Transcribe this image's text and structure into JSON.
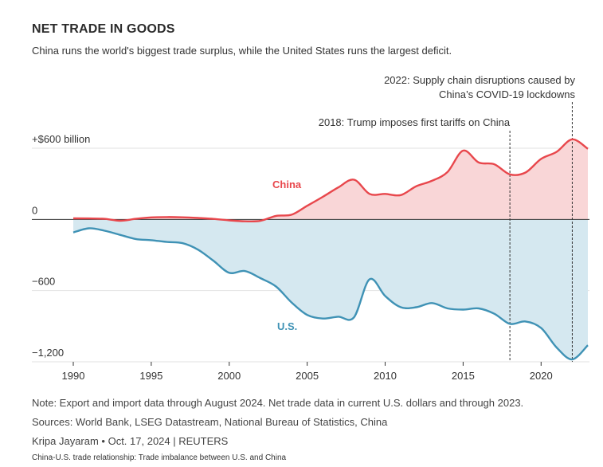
{
  "header": {
    "title": "NET TRADE IN GOODS",
    "subtitle": "China runs the world's biggest trade surplus, while the United States runs the largest deficit."
  },
  "footer": {
    "note": "Note: Export and import data through August 2024. Net trade data in current U.S. dollars and through 2023.",
    "sources": "Sources: World Bank, LSEG Datastream, National Bureau of Statistics, China",
    "byline": "Kripa Jayaram • Oct. 17, 2024 | REUTERS",
    "caption": "China-U.S. trade relationship: Trade imbalance between U.S. and China"
  },
  "colors": {
    "china_line": "#e8474c",
    "china_fill": "#f9d6d7",
    "us_line": "#3f92b5",
    "us_fill": "#d5e8f0",
    "grid": "#e2e2e2",
    "zero": "#333333"
  },
  "chart_data": {
    "type": "area",
    "title": "NET TRADE IN GOODS",
    "xlim": [
      1990,
      2023
    ],
    "ylim": [
      -1200,
      600
    ],
    "y_ticks": [
      {
        "value": 600,
        "label": "+$600 billion"
      },
      {
        "value": 0,
        "label": "0"
      },
      {
        "value": -600,
        "label": "−600"
      },
      {
        "value": -1200,
        "label": "−1,200"
      }
    ],
    "x_ticks": [
      1990,
      1995,
      2000,
      2005,
      2010,
      2015,
      2020
    ],
    "grid": true,
    "series": [
      {
        "name": "China",
        "x": [
          1990,
          1991,
          1992,
          1993,
          1994,
          1995,
          1996,
          1997,
          1998,
          1999,
          2000,
          2001,
          2002,
          2003,
          2004,
          2005,
          2006,
          2007,
          2008,
          2009,
          2010,
          2011,
          2012,
          2013,
          2014,
          2015,
          2016,
          2017,
          2018,
          2019,
          2020,
          2021,
          2022,
          2023
        ],
        "values": [
          9,
          8,
          5,
          -11,
          5,
          17,
          20,
          18,
          12,
          4,
          -8,
          -16,
          -12,
          30,
          40,
          115,
          190,
          270,
          335,
          215,
          215,
          205,
          280,
          325,
          400,
          580,
          480,
          465,
          380,
          395,
          510,
          570,
          675,
          595
        ]
      },
      {
        "name": "U.S.",
        "x": [
          1990,
          1991,
          1992,
          1993,
          1994,
          1995,
          1996,
          1997,
          1998,
          1999,
          2000,
          2001,
          2002,
          2003,
          2004,
          2005,
          2006,
          2007,
          2008,
          2009,
          2010,
          2011,
          2012,
          2013,
          2014,
          2015,
          2016,
          2017,
          2018,
          2019,
          2020,
          2021,
          2022,
          2023
        ],
        "values": [
          -110,
          -75,
          -95,
          -130,
          -165,
          -175,
          -190,
          -200,
          -255,
          -350,
          -450,
          -435,
          -495,
          -565,
          -700,
          -805,
          -835,
          -820,
          -825,
          -505,
          -645,
          -740,
          -740,
          -705,
          -750,
          -760,
          -750,
          -795,
          -880,
          -860,
          -915,
          -1080,
          -1180,
          -1060
        ]
      }
    ],
    "annotations": [
      {
        "x": 2018,
        "lines": [
          "2018: Trump imposes first tariffs on China"
        ]
      },
      {
        "x": 2022,
        "lines": [
          "2022: Supply chain disruptions caused by",
          "China’s COVID-19 lockdowns"
        ]
      }
    ],
    "labels": {
      "china": "China",
      "us": "U.S."
    }
  }
}
